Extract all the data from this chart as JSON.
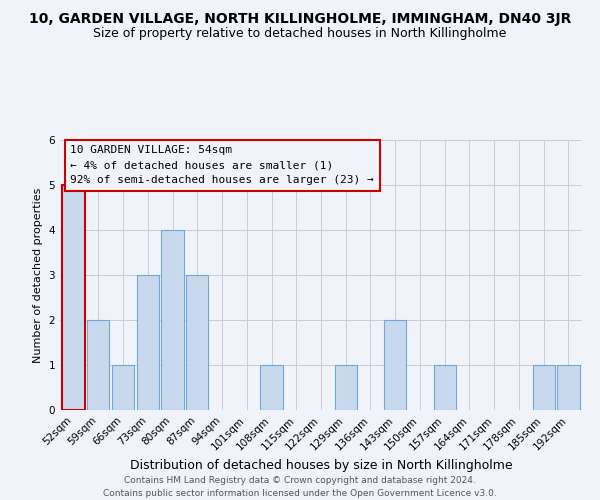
{
  "title": "10, GARDEN VILLAGE, NORTH KILLINGHOLME, IMMINGHAM, DN40 3JR",
  "subtitle": "Size of property relative to detached houses in North Killingholme",
  "xlabel": "Distribution of detached houses by size in North Killingholme",
  "ylabel": "Number of detached properties",
  "footer_line1": "Contains HM Land Registry data © Crown copyright and database right 2024.",
  "footer_line2": "Contains public sector information licensed under the Open Government Licence v3.0.",
  "annotation_line1": "10 GARDEN VILLAGE: 54sqm",
  "annotation_line2": "← 4% of detached houses are smaller (1)",
  "annotation_line3": "92% of semi-detached houses are larger (23) →",
  "categories": [
    "52sqm",
    "59sqm",
    "66sqm",
    "73sqm",
    "80sqm",
    "87sqm",
    "94sqm",
    "101sqm",
    "108sqm",
    "115sqm",
    "122sqm",
    "129sqm",
    "136sqm",
    "143sqm",
    "150sqm",
    "157sqm",
    "164sqm",
    "171sqm",
    "178sqm",
    "185sqm",
    "192sqm"
  ],
  "values": [
    5,
    2,
    1,
    3,
    4,
    3,
    0,
    0,
    1,
    0,
    0,
    1,
    0,
    2,
    0,
    1,
    0,
    0,
    0,
    1,
    1
  ],
  "bar_color": "#c9d9ed",
  "bar_edge_color": "#6fa8d6",
  "highlight_bar_index": 0,
  "highlight_edge_color": "#cc0000",
  "annotation_box_edge_color": "#cc0000",
  "ylim": [
    0,
    6
  ],
  "yticks": [
    0,
    1,
    2,
    3,
    4,
    5,
    6
  ],
  "grid_color": "#cccccc",
  "bg_color": "#f0f4fa",
  "title_fontsize": 10,
  "subtitle_fontsize": 9,
  "xlabel_fontsize": 9,
  "ylabel_fontsize": 8,
  "tick_fontsize": 7.5,
  "annotation_fontsize": 8,
  "footer_fontsize": 6.5
}
